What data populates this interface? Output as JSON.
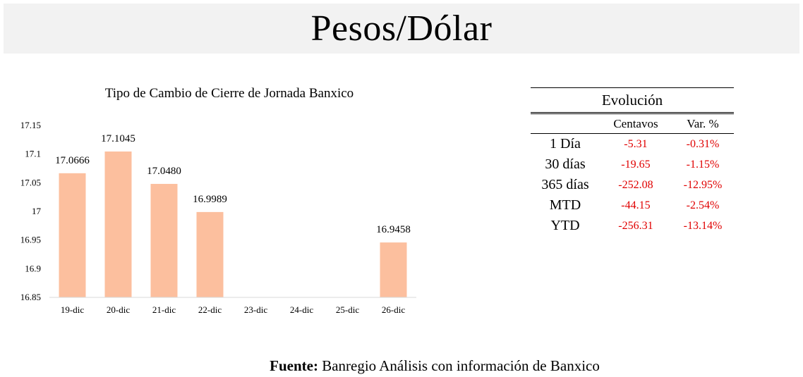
{
  "title": "Pesos/Dólar",
  "chart_data": {
    "type": "bar",
    "title": "Tipo de Cambio de Cierre de Jornada Banxico",
    "categories": [
      "19-dic",
      "20-dic",
      "21-dic",
      "22-dic",
      "23-dic",
      "24-dic",
      "25-dic",
      "26-dic"
    ],
    "values": [
      17.0666,
      17.1045,
      17.048,
      16.9989,
      null,
      null,
      null,
      16.9458
    ],
    "data_labels": [
      "17.0666",
      "17.1045",
      "17.0480",
      "16.9989",
      "",
      "",
      "",
      "16.9458"
    ],
    "y_ticks": [
      "16.85",
      "16.9",
      "16.95",
      "17",
      "17.05",
      "17.1",
      "17.15"
    ],
    "ylim": [
      16.85,
      17.15
    ],
    "bar_color": "#fcbf9e",
    "grid": false,
    "legend": "none"
  },
  "table": {
    "header": "Evolución",
    "columns": [
      "Centavos",
      "Var. %"
    ],
    "rows": [
      {
        "label": "1 Día",
        "centavos": "-5.31",
        "var": "-0.31%"
      },
      {
        "label": "30 días",
        "centavos": "-19.65",
        "var": "-1.15%"
      },
      {
        "label": "365 días",
        "centavos": "-252.08",
        "var": "-12.95%"
      },
      {
        "label": "MTD",
        "centavos": "-44.15",
        "var": "-2.54%"
      },
      {
        "label": "YTD",
        "centavos": "-256.31",
        "var": "-13.14%"
      }
    ],
    "value_color": "#e00000"
  },
  "source": {
    "prefix": "Fuente:",
    "text": " Banregio Análisis con información de Banxico"
  }
}
